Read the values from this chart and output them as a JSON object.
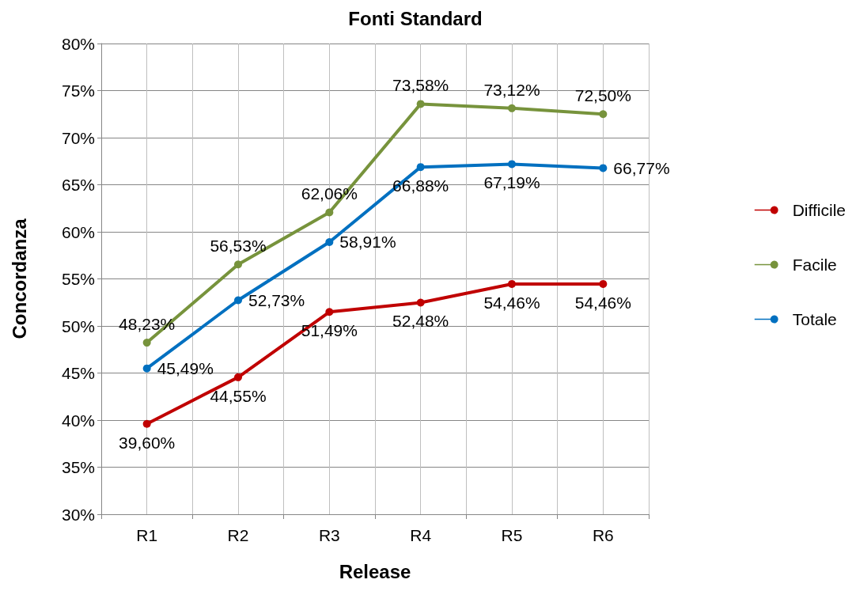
{
  "chart_data": {
    "type": "line",
    "title": "Fonti Standard",
    "xlabel": "Release",
    "ylabel": "Concordanza",
    "categories": [
      "R1",
      "R2",
      "R3",
      "R4",
      "R5",
      "R6"
    ],
    "series": [
      {
        "name": "Difficile",
        "color": "#c00000",
        "values": [
          39.6,
          44.55,
          51.49,
          52.48,
          54.46,
          54.46
        ],
        "value_labels": [
          "39,60%",
          "44,55%",
          "51,49%",
          "52,48%",
          "54,46%",
          "54,46%"
        ]
      },
      {
        "name": "Facile",
        "color": "#77933c",
        "values": [
          48.23,
          56.53,
          62.06,
          73.58,
          73.12,
          72.5
        ],
        "value_labels": [
          "48,23%",
          "56,53%",
          "62,06%",
          "73,58%",
          "73,12%",
          "72,50%"
        ]
      },
      {
        "name": "Totale",
        "color": "#0070c0",
        "values": [
          45.49,
          52.73,
          58.91,
          66.88,
          67.19,
          66.77
        ],
        "value_labels": [
          "45,49%",
          "52,73%",
          "58,91%",
          "66,88%",
          "67,19%",
          "66,77%"
        ]
      }
    ],
    "ylim": [
      30,
      80
    ],
    "yticks": [
      {
        "value": 30,
        "label": "30%"
      },
      {
        "value": 35,
        "label": "35%"
      },
      {
        "value": 40,
        "label": "40%"
      },
      {
        "value": 45,
        "label": "45%"
      },
      {
        "value": 50,
        "label": "50%"
      },
      {
        "value": 55,
        "label": "55%"
      },
      {
        "value": 60,
        "label": "60%"
      },
      {
        "value": 65,
        "label": "65%"
      },
      {
        "value": 70,
        "label": "70%"
      },
      {
        "value": 75,
        "label": "75%"
      },
      {
        "value": 80,
        "label": "80%"
      }
    ],
    "grid": true,
    "legend": "right",
    "marker": "circle",
    "line_style": "solid"
  }
}
